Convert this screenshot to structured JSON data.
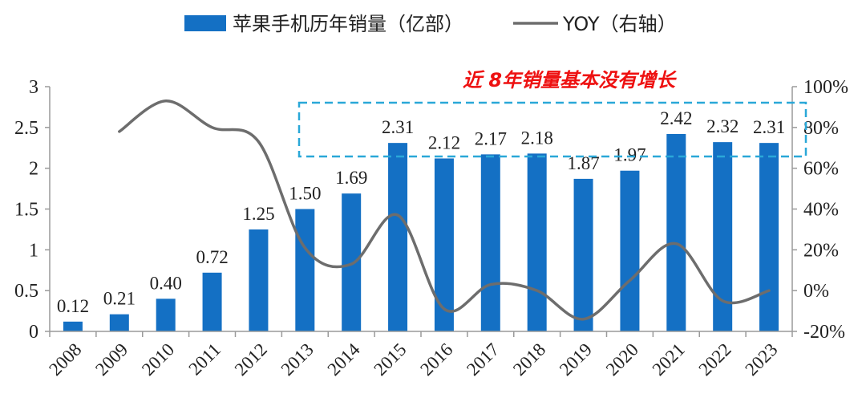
{
  "chart_data": {
    "type": "bar",
    "categories": [
      "2008",
      "2009",
      "2010",
      "2011",
      "2012",
      "2013",
      "2014",
      "2015",
      "2016",
      "2017",
      "2018",
      "2019",
      "2020",
      "2021",
      "2022",
      "2023"
    ],
    "series": [
      {
        "name": "苹果手机历年销量（亿部）",
        "type": "bar",
        "axis": "left",
        "values": [
          0.12,
          0.21,
          0.4,
          0.72,
          1.25,
          1.5,
          1.69,
          2.31,
          2.12,
          2.17,
          2.18,
          1.87,
          1.97,
          2.42,
          2.32,
          2.31
        ],
        "labels": [
          "0.12",
          "0.21",
          "0.40",
          "0.72",
          "1.25",
          "1.50",
          "1.69",
          "2.31",
          "2.12",
          "2.17",
          "2.18",
          "1.87",
          "1.97",
          "2.42",
          "2.32",
          "2.31"
        ],
        "color": "#1470c4"
      },
      {
        "name": "YOY（右轴）",
        "type": "line",
        "axis": "right",
        "values": [
          null,
          78,
          93,
          80,
          73,
          21,
          13,
          37,
          -9,
          3,
          0,
          -14,
          5,
          23,
          -5,
          0
        ],
        "color": "#6d6d6d"
      }
    ],
    "y_left": {
      "range": [
        0,
        3
      ],
      "ticks": [
        "0",
        "0.5",
        "1",
        "1.5",
        "2",
        "2.5",
        "3"
      ]
    },
    "y_right": {
      "range": [
        -20,
        100
      ],
      "ticks": [
        "-20%",
        "0%",
        "20%",
        "40%",
        "60%",
        "80%",
        "100%"
      ]
    },
    "annotation": {
      "text": "近 8年销量基本没有增长",
      "color": "#ee1111",
      "box_color": "#2aa8d8"
    },
    "legend_position": "top-center",
    "grid": false
  }
}
